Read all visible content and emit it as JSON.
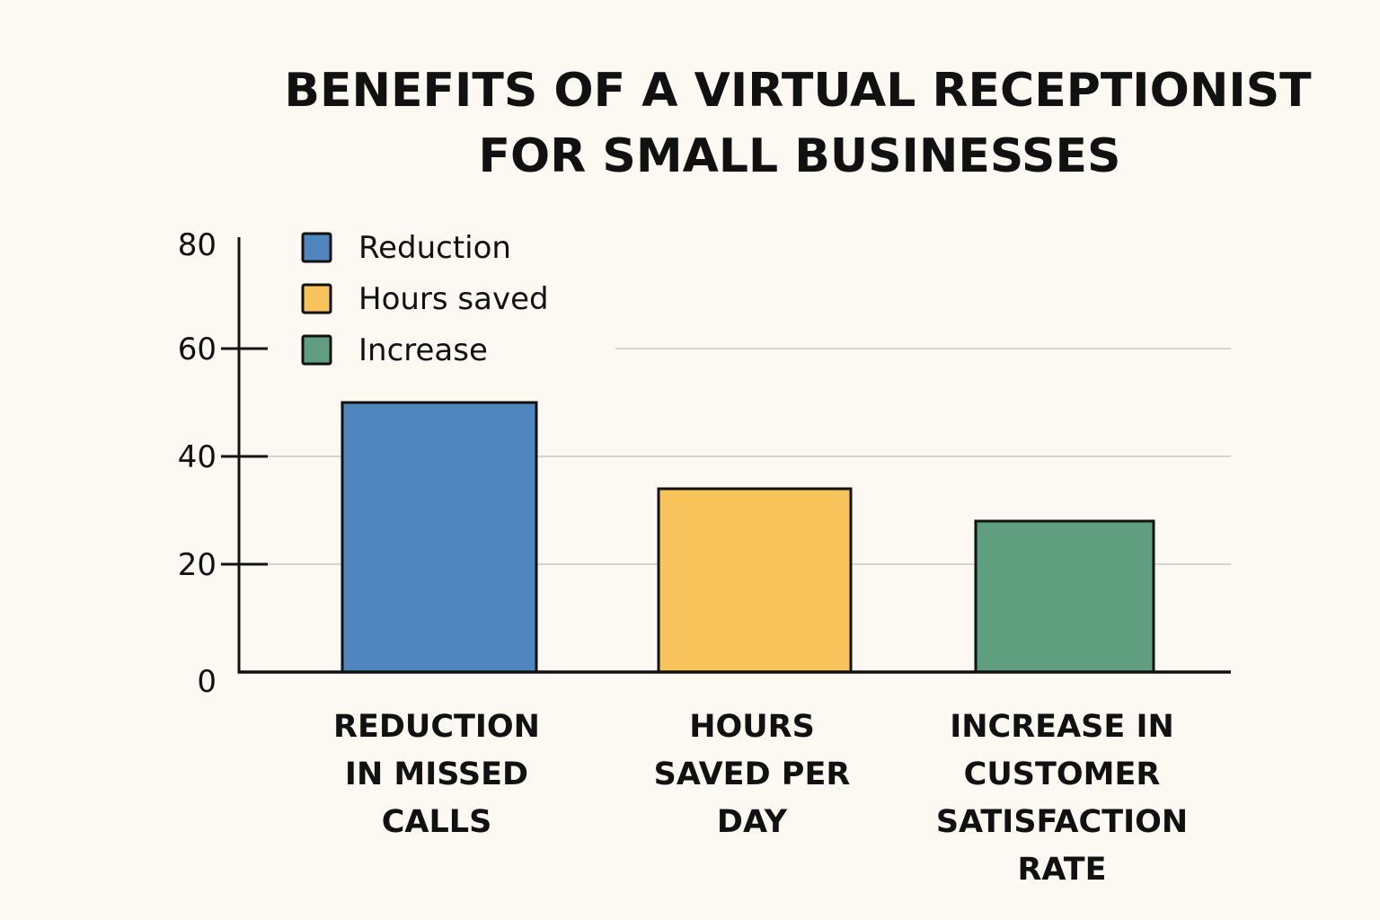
{
  "chart_data": {
    "type": "bar",
    "title": [
      "BENEFITS OF A VIRTUAL RECEPTIONIST",
      "FOR SMALL BUSINESSES"
    ],
    "categories": [
      [
        "REDUCTION",
        "IN MISSED",
        "CALLS"
      ],
      [
        "HOURS",
        "SAVED PER",
        "DAY"
      ],
      [
        "INCREASE IN",
        "CUSTOMER",
        "SATISFACTION",
        "RATE"
      ]
    ],
    "series": [
      {
        "name": "Reduction",
        "color": "#4f86bf",
        "values": [
          50,
          null,
          null
        ]
      },
      {
        "name": "Hours saved",
        "color": "#f7c35a",
        "values": [
          null,
          34,
          null
        ]
      },
      {
        "name": "Increase",
        "color": "#5f9e7e",
        "values": [
          null,
          null,
          28
        ]
      }
    ],
    "xlabel": "",
    "ylabel": "",
    "ylim": [
      0,
      80
    ],
    "yticks": [
      "0",
      "20",
      "40",
      "60",
      "80"
    ],
    "grid": true,
    "legend": "top-left"
  }
}
